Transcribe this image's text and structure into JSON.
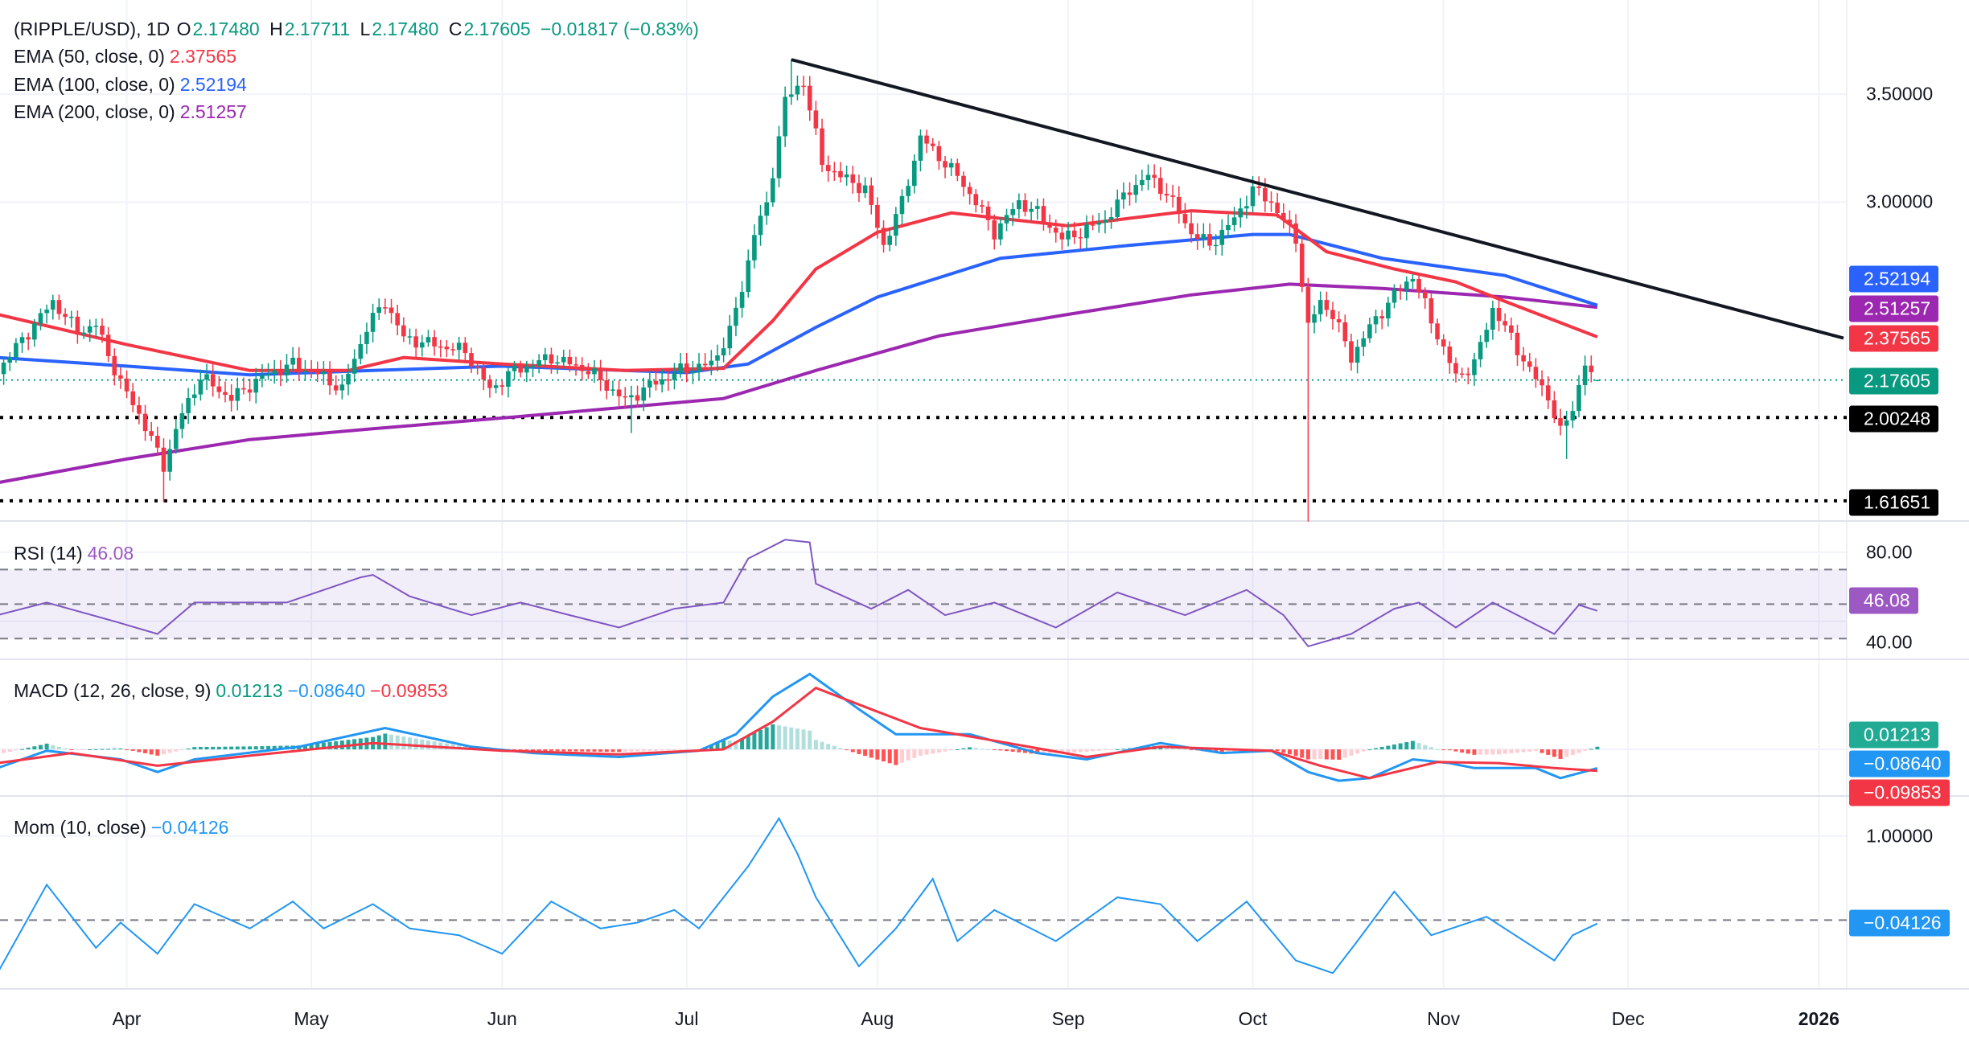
{
  "header": {
    "symbol": "(RIPPLE/USD), 1D",
    "o_label": "O",
    "open": "2.17480",
    "h_label": "H",
    "high": "2.17711",
    "l_label": "L",
    "low": "2.17480",
    "c_label": "C",
    "close": "2.17605",
    "change": "−0.01817 (−0.83%)"
  },
  "indicators": {
    "ema50": {
      "label": "EMA (50, close, 0)",
      "value": "2.37565",
      "color": "#f23645"
    },
    "ema100": {
      "label": "EMA (100, close, 0)",
      "value": "2.52194",
      "color": "#2962ff"
    },
    "ema200": {
      "label": "EMA (200, close, 0)",
      "value": "2.51257",
      "color": "#9c27b0"
    },
    "rsi": {
      "label": "RSI (14)",
      "value": "46.08",
      "color": "#7e57c2"
    },
    "macd": {
      "label": "MACD (12, 26, close, 9)",
      "hist": "0.01213",
      "macd": "−0.08640",
      "signal": "−0.09853"
    },
    "mom": {
      "label": "Mom (10, close)",
      "value": "−0.04126",
      "color": "#2196f3"
    }
  },
  "price_axis": {
    "ticks": [
      "3.50000",
      "3.00000"
    ]
  },
  "rsi_axis": {
    "ticks": [
      "80.00",
      "40.00"
    ]
  },
  "mom_axis": {
    "ticks": [
      "1.00000"
    ]
  },
  "badges": {
    "ema100": "2.52194",
    "ema200": "2.51257",
    "ema50": "2.37565",
    "last": "2.17605",
    "support1": "2.00248",
    "support2": "1.61651",
    "rsi": "46.08",
    "hist": "0.01213",
    "macd": "−0.08640",
    "signal": "−0.09853",
    "mom": "−0.04126"
  },
  "time_axis": {
    "labels": [
      "Apr",
      "May",
      "Jun",
      "Jul",
      "Aug",
      "Sep",
      "Oct",
      "Nov",
      "Dec",
      "2026"
    ]
  },
  "colors": {
    "up": "#089981",
    "down": "#f23645",
    "trendline": "#131722",
    "grid": "#f0f3fa"
  },
  "chart_data": [
    {
      "type": "candlestick",
      "title": "(RIPPLE/USD), 1D",
      "x_range": [
        "2025-03-11",
        "2026-01-20"
      ],
      "ylim": [
        1.52,
        3.72
      ],
      "grid": true,
      "close_keypoints": [
        [
          "2025-03-11",
          2.22
        ],
        [
          "2025-03-20",
          2.54
        ],
        [
          "2025-03-24",
          2.4
        ],
        [
          "2025-03-27",
          2.43
        ],
        [
          "2025-03-31",
          2.16
        ],
        [
          "2025-04-03",
          2.02
        ],
        [
          "2025-04-07",
          1.78
        ],
        [
          "2025-04-10",
          2.02
        ],
        [
          "2025-04-13",
          2.19
        ],
        [
          "2025-04-18",
          2.09
        ],
        [
          "2025-04-23",
          2.19
        ],
        [
          "2025-04-28",
          2.25
        ],
        [
          "2025-05-03",
          2.19
        ],
        [
          "2025-05-06",
          2.13
        ],
        [
          "2025-05-10",
          2.42
        ],
        [
          "2025-05-13",
          2.54
        ],
        [
          "2025-05-16",
          2.37
        ],
        [
          "2025-05-21",
          2.34
        ],
        [
          "2025-05-26",
          2.31
        ],
        [
          "2025-05-30",
          2.13
        ],
        [
          "2025-06-03",
          2.22
        ],
        [
          "2025-06-09",
          2.28
        ],
        [
          "2025-06-15",
          2.22
        ],
        [
          "2025-06-21",
          2.08
        ],
        [
          "2025-06-25",
          2.15
        ],
        [
          "2025-06-30",
          2.22
        ],
        [
          "2025-07-05",
          2.25
        ],
        [
          "2025-07-08",
          2.4
        ],
        [
          "2025-07-10",
          2.6
        ],
        [
          "2025-07-12",
          2.86
        ],
        [
          "2025-07-14",
          2.98
        ],
        [
          "2025-07-17",
          3.47
        ],
        [
          "2025-07-20",
          3.56
        ],
        [
          "2025-07-23",
          3.18
        ],
        [
          "2025-07-26",
          3.12
        ],
        [
          "2025-07-30",
          3.06
        ],
        [
          "2025-08-02",
          2.8
        ],
        [
          "2025-08-05",
          3.0
        ],
        [
          "2025-08-08",
          3.3
        ],
        [
          "2025-08-11",
          3.21
        ],
        [
          "2025-08-14",
          3.12
        ],
        [
          "2025-08-17",
          3.0
        ],
        [
          "2025-08-20",
          2.86
        ],
        [
          "2025-08-24",
          3.0
        ],
        [
          "2025-08-27",
          2.95
        ],
        [
          "2025-08-31",
          2.83
        ],
        [
          "2025-09-03",
          2.86
        ],
        [
          "2025-09-07",
          2.92
        ],
        [
          "2025-09-11",
          3.06
        ],
        [
          "2025-09-14",
          3.12
        ],
        [
          "2025-09-17",
          3.04
        ],
        [
          "2025-09-21",
          2.86
        ],
        [
          "2025-09-24",
          2.8
        ],
        [
          "2025-09-28",
          2.92
        ],
        [
          "2025-10-01",
          3.06
        ],
        [
          "2025-10-04",
          3.0
        ],
        [
          "2025-10-08",
          2.83
        ],
        [
          "2025-10-10",
          2.42
        ],
        [
          "2025-10-12",
          2.54
        ],
        [
          "2025-10-14",
          2.48
        ],
        [
          "2025-10-17",
          2.28
        ],
        [
          "2025-10-20",
          2.42
        ],
        [
          "2025-10-24",
          2.57
        ],
        [
          "2025-10-27",
          2.66
        ],
        [
          "2025-10-30",
          2.45
        ],
        [
          "2025-11-03",
          2.19
        ],
        [
          "2025-11-06",
          2.25
        ],
        [
          "2025-11-09",
          2.51
        ],
        [
          "2025-11-12",
          2.37
        ],
        [
          "2025-11-15",
          2.22
        ],
        [
          "2025-11-18",
          2.1
        ],
        [
          "2025-11-20",
          1.93
        ],
        [
          "2025-11-22",
          2.05
        ],
        [
          "2025-11-24",
          2.25
        ],
        [
          "2025-11-25",
          2.19
        ]
      ],
      "last_candle": {
        "date": "2025-11-26",
        "open": 2.1748,
        "high": 2.17711,
        "low": 2.1748,
        "close": 2.17605
      },
      "notable_wicks": [
        {
          "date": "2025-04-07",
          "low": 1.61
        },
        {
          "date": "2025-06-22",
          "low": 1.93
        },
        {
          "date": "2025-07-18",
          "high": 3.66
        },
        {
          "date": "2025-10-10",
          "low": 1.52
        },
        {
          "date": "2025-11-21",
          "low": 1.81
        }
      ],
      "ema50": [
        [
          "2025-03-11",
          2.48
        ],
        [
          "2025-04-01",
          2.34
        ],
        [
          "2025-04-21",
          2.22
        ],
        [
          "2025-05-07",
          2.22
        ],
        [
          "2025-05-16",
          2.28
        ],
        [
          "2025-06-01",
          2.25
        ],
        [
          "2025-06-21",
          2.22
        ],
        [
          "2025-07-07",
          2.23
        ],
        [
          "2025-07-15",
          2.45
        ],
        [
          "2025-07-22",
          2.69
        ],
        [
          "2025-08-01",
          2.86
        ],
        [
          "2025-08-13",
          2.95
        ],
        [
          "2025-09-01",
          2.89
        ],
        [
          "2025-09-21",
          2.96
        ],
        [
          "2025-10-05",
          2.94
        ],
        [
          "2025-10-13",
          2.77
        ],
        [
          "2025-10-24",
          2.69
        ],
        [
          "2025-11-03",
          2.63
        ],
        [
          "2025-11-11",
          2.54
        ],
        [
          "2025-11-26",
          2.37565
        ]
      ],
      "ema100": [
        [
          "2025-03-11",
          2.28
        ],
        [
          "2025-04-01",
          2.24
        ],
        [
          "2025-04-21",
          2.2
        ],
        [
          "2025-05-11",
          2.22
        ],
        [
          "2025-06-01",
          2.24
        ],
        [
          "2025-07-01",
          2.21
        ],
        [
          "2025-07-11",
          2.25
        ],
        [
          "2025-07-22",
          2.42
        ],
        [
          "2025-08-01",
          2.56
        ],
        [
          "2025-08-21",
          2.74
        ],
        [
          "2025-09-11",
          2.8
        ],
        [
          "2025-10-01",
          2.85
        ],
        [
          "2025-10-07",
          2.85
        ],
        [
          "2025-10-22",
          2.74
        ],
        [
          "2025-11-01",
          2.7
        ],
        [
          "2025-11-11",
          2.66
        ],
        [
          "2025-11-26",
          2.52194
        ]
      ],
      "ema200": [
        [
          "2025-03-11",
          1.7
        ],
        [
          "2025-04-01",
          1.81
        ],
        [
          "2025-04-21",
          1.9
        ],
        [
          "2025-05-11",
          1.95
        ],
        [
          "2025-06-01",
          2.0
        ],
        [
          "2025-06-21",
          2.05
        ],
        [
          "2025-07-07",
          2.09
        ],
        [
          "2025-07-22",
          2.22
        ],
        [
          "2025-08-11",
          2.38
        ],
        [
          "2025-09-01",
          2.48
        ],
        [
          "2025-09-21",
          2.57
        ],
        [
          "2025-10-07",
          2.62
        ],
        [
          "2025-10-22",
          2.6
        ],
        [
          "2025-11-11",
          2.56
        ],
        [
          "2025-11-26",
          2.51257
        ]
      ],
      "trendline": [
        [
          "2025-07-18",
          3.66
        ],
        [
          "2026-01-05",
          2.37
        ]
      ],
      "horizontal_levels": [
        2.00248,
        1.61651
      ],
      "last_price": 2.17605
    },
    {
      "type": "line",
      "title": "RSI (14)",
      "ylim": [
        20,
        92
      ],
      "bands": [
        30,
        50,
        70
      ],
      "values": [
        [
          "2025-03-11",
          43.6
        ],
        [
          "2025-03-19",
          50.9
        ],
        [
          "2025-03-30",
          40
        ],
        [
          "2025-04-06",
          32.7
        ],
        [
          "2025-04-12",
          50.9
        ],
        [
          "2025-04-27",
          50.9
        ],
        [
          "2025-05-09",
          65.5
        ],
        [
          "2025-05-11",
          66.9
        ],
        [
          "2025-05-17",
          54.5
        ],
        [
          "2025-05-27",
          43.6
        ],
        [
          "2025-06-04",
          50.9
        ],
        [
          "2025-06-12",
          43.6
        ],
        [
          "2025-06-20",
          36.4
        ],
        [
          "2025-06-29",
          47.3
        ],
        [
          "2025-07-07",
          50.9
        ],
        [
          "2025-07-11",
          76.4
        ],
        [
          "2025-07-17",
          87.3
        ],
        [
          "2025-07-21",
          85.8
        ],
        [
          "2025-07-22",
          61.8
        ],
        [
          "2025-07-31",
          47.3
        ],
        [
          "2025-08-06",
          58.2
        ],
        [
          "2025-08-12",
          43.6
        ],
        [
          "2025-08-20",
          50.9
        ],
        [
          "2025-08-30",
          36.4
        ],
        [
          "2025-09-09",
          56.7
        ],
        [
          "2025-09-20",
          43.6
        ],
        [
          "2025-09-30",
          58.2
        ],
        [
          "2025-10-06",
          43.6
        ],
        [
          "2025-10-10",
          25.5
        ],
        [
          "2025-10-17",
          32.7
        ],
        [
          "2025-10-24",
          47.3
        ],
        [
          "2025-10-28",
          50.9
        ],
        [
          "2025-11-03",
          36.4
        ],
        [
          "2025-11-09",
          50.9
        ],
        [
          "2025-11-19",
          32.7
        ],
        [
          "2025-11-23",
          49.5
        ],
        [
          "2025-11-26",
          46.08
        ]
      ]
    },
    {
      "type": "line",
      "title": "MACD (12, 26, close, 9)",
      "macd": [
        [
          "2025-03-11",
          -0.086
        ],
        [
          "2025-03-19",
          -0.006
        ],
        [
          "2025-03-31",
          -0.046
        ],
        [
          "2025-04-06",
          -0.104
        ],
        [
          "2025-04-12",
          -0.046
        ],
        [
          "2025-04-29",
          0.012
        ],
        [
          "2025-05-13",
          0.098
        ],
        [
          "2025-05-27",
          0.012
        ],
        [
          "2025-06-06",
          -0.017
        ],
        [
          "2025-06-20",
          -0.035
        ],
        [
          "2025-07-03",
          -0.006
        ],
        [
          "2025-07-09",
          0.069
        ],
        [
          "2025-07-15",
          0.242
        ],
        [
          "2025-07-21",
          0.346
        ],
        [
          "2025-07-29",
          0.184
        ],
        [
          "2025-08-04",
          0.069
        ],
        [
          "2025-08-16",
          0.069
        ],
        [
          "2025-08-27",
          -0.017
        ],
        [
          "2025-09-04",
          -0.046
        ],
        [
          "2025-09-16",
          0.029
        ],
        [
          "2025-09-26",
          -0.017
        ],
        [
          "2025-10-04",
          -0.006
        ],
        [
          "2025-10-10",
          -0.104
        ],
        [
          "2025-10-15",
          -0.144
        ],
        [
          "2025-10-20",
          -0.132
        ],
        [
          "2025-10-27",
          -0.046
        ],
        [
          "2025-11-02",
          -0.063
        ],
        [
          "2025-11-06",
          -0.086
        ],
        [
          "2025-11-16",
          -0.086
        ],
        [
          "2025-11-20",
          -0.132
        ],
        [
          "2025-11-26",
          -0.0864
        ]
      ],
      "signal": [
        [
          "2025-03-11",
          -0.063
        ],
        [
          "2025-03-23",
          -0.017
        ],
        [
          "2025-04-06",
          -0.075
        ],
        [
          "2025-04-21",
          -0.029
        ],
        [
          "2025-05-11",
          0.029
        ],
        [
          "2025-06-01",
          -0.006
        ],
        [
          "2025-06-20",
          -0.023
        ],
        [
          "2025-07-07",
          0.0
        ],
        [
          "2025-07-15",
          0.127
        ],
        [
          "2025-07-22",
          0.282
        ],
        [
          "2025-07-31",
          0.184
        ],
        [
          "2025-08-08",
          0.098
        ],
        [
          "2025-08-20",
          0.04
        ],
        [
          "2025-09-04",
          -0.035
        ],
        [
          "2025-09-16",
          0.012
        ],
        [
          "2025-10-04",
          -0.006
        ],
        [
          "2025-10-12",
          -0.075
        ],
        [
          "2025-10-20",
          -0.132
        ],
        [
          "2025-10-31",
          -0.058
        ],
        [
          "2025-11-10",
          -0.063
        ],
        [
          "2025-11-19",
          -0.086
        ],
        [
          "2025-11-26",
          -0.0985
        ]
      ]
    },
    {
      "type": "line",
      "title": "Mom (10, close)",
      "zero_line": true,
      "values": [
        [
          "2025-03-11",
          -0.63
        ],
        [
          "2025-03-19",
          0.42
        ],
        [
          "2025-03-27",
          -0.33
        ],
        [
          "2025-03-31",
          -0.03
        ],
        [
          "2025-04-06",
          -0.4
        ],
        [
          "2025-04-12",
          0.19
        ],
        [
          "2025-04-21",
          -0.1
        ],
        [
          "2025-04-28",
          0.22
        ],
        [
          "2025-05-03",
          -0.1
        ],
        [
          "2025-05-11",
          0.19
        ],
        [
          "2025-05-17",
          -0.1
        ],
        [
          "2025-05-25",
          -0.18
        ],
        [
          "2025-06-01",
          -0.4
        ],
        [
          "2025-06-09",
          0.22
        ],
        [
          "2025-06-17",
          -0.1
        ],
        [
          "2025-06-23",
          -0.03
        ],
        [
          "2025-06-29",
          0.12
        ],
        [
          "2025-07-03",
          -0.1
        ],
        [
          "2025-07-11",
          0.64
        ],
        [
          "2025-07-16",
          1.21
        ],
        [
          "2025-07-19",
          0.79
        ],
        [
          "2025-07-22",
          0.27
        ],
        [
          "2025-07-29",
          -0.55
        ],
        [
          "2025-08-04",
          -0.1
        ],
        [
          "2025-08-10",
          0.49
        ],
        [
          "2025-08-14",
          -0.25
        ],
        [
          "2025-08-20",
          0.12
        ],
        [
          "2025-08-30",
          -0.25
        ],
        [
          "2025-09-09",
          0.27
        ],
        [
          "2025-09-16",
          0.19
        ],
        [
          "2025-09-22",
          -0.25
        ],
        [
          "2025-09-30",
          0.22
        ],
        [
          "2025-10-08",
          -0.48
        ],
        [
          "2025-10-14",
          -0.63
        ],
        [
          "2025-10-18",
          -0.25
        ],
        [
          "2025-10-24",
          0.34
        ],
        [
          "2025-10-30",
          -0.18
        ],
        [
          "2025-11-08",
          0.04
        ],
        [
          "2025-11-19",
          -0.48
        ],
        [
          "2025-11-22",
          -0.18
        ],
        [
          "2025-11-26",
          -0.04126
        ]
      ]
    }
  ]
}
